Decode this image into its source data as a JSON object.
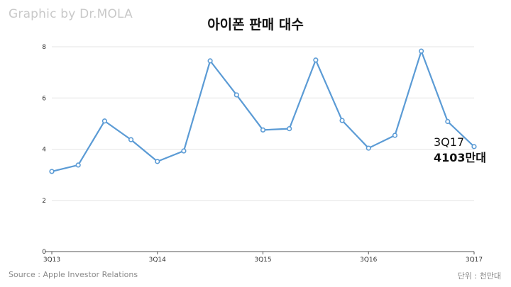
{
  "watermark": "Graphic by Dr.MOLA",
  "source": "Source : Apple Investor Relations",
  "unit_label": "단위 : 천만대",
  "callout": {
    "quarter": "3Q17",
    "value": "4103만대"
  },
  "colors": {
    "line": "#5b9bd5",
    "grid": "#e6e6e6",
    "axis": "#555555"
  },
  "chart_data": {
    "type": "line",
    "title": "아이폰 판매 대수",
    "xlabel": "",
    "ylabel": "",
    "ylim": [
      0,
      8
    ],
    "yticks": [
      0,
      2,
      4,
      6,
      8
    ],
    "grid": true,
    "categories": [
      "3Q13",
      "4Q13",
      "1Q14",
      "2Q14",
      "3Q14",
      "4Q14",
      "1Q15",
      "2Q15",
      "3Q15",
      "4Q15",
      "1Q16",
      "2Q16",
      "3Q16",
      "4Q16",
      "1Q17",
      "2Q17",
      "3Q17"
    ],
    "x_tick_labels": [
      "3Q13",
      "3Q14",
      "3Q15",
      "3Q16",
      "3Q17"
    ],
    "series": [
      {
        "values": [
          3.13,
          3.38,
          5.1,
          4.37,
          3.52,
          3.93,
          7.45,
          6.12,
          4.75,
          4.8,
          7.48,
          5.12,
          4.04,
          4.54,
          7.83,
          5.08,
          4.1
        ]
      }
    ]
  }
}
